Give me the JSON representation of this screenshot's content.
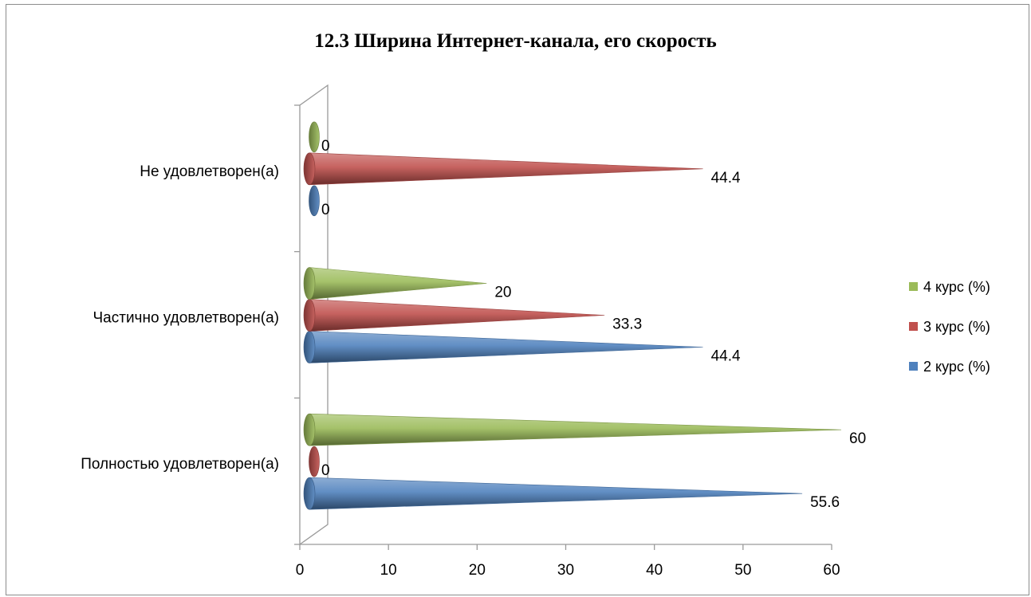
{
  "chart_data": {
    "type": "bar",
    "orientation": "horizontal",
    "shape": "cone",
    "title": "12.3 Ширина Интернет-канала, его скорость",
    "categories": [
      "Полностью удовлетворен(а)",
      "Частично удовлетворен(а)",
      "Не удовлетворен(а)"
    ],
    "series": [
      {
        "name": "2 курс (%)",
        "values": [
          55.6,
          44.4,
          0
        ],
        "color": "#4f81bd"
      },
      {
        "name": "3 курс (%)",
        "values": [
          0,
          33.3,
          44.4
        ],
        "color": "#c0504d"
      },
      {
        "name": "4 курс (%)",
        "values": [
          60,
          20,
          0
        ],
        "color": "#9bbb59"
      }
    ],
    "value_labels": [
      [
        "55.6",
        "44.4",
        "0"
      ],
      [
        "0",
        "33.3",
        "44.4"
      ],
      [
        "60",
        "20",
        "0"
      ]
    ],
    "xlim": [
      0,
      60
    ],
    "xticks": [
      "0",
      "10",
      "20",
      "30",
      "40",
      "50",
      "60"
    ],
    "legend_position": "right",
    "gridlines": false
  }
}
